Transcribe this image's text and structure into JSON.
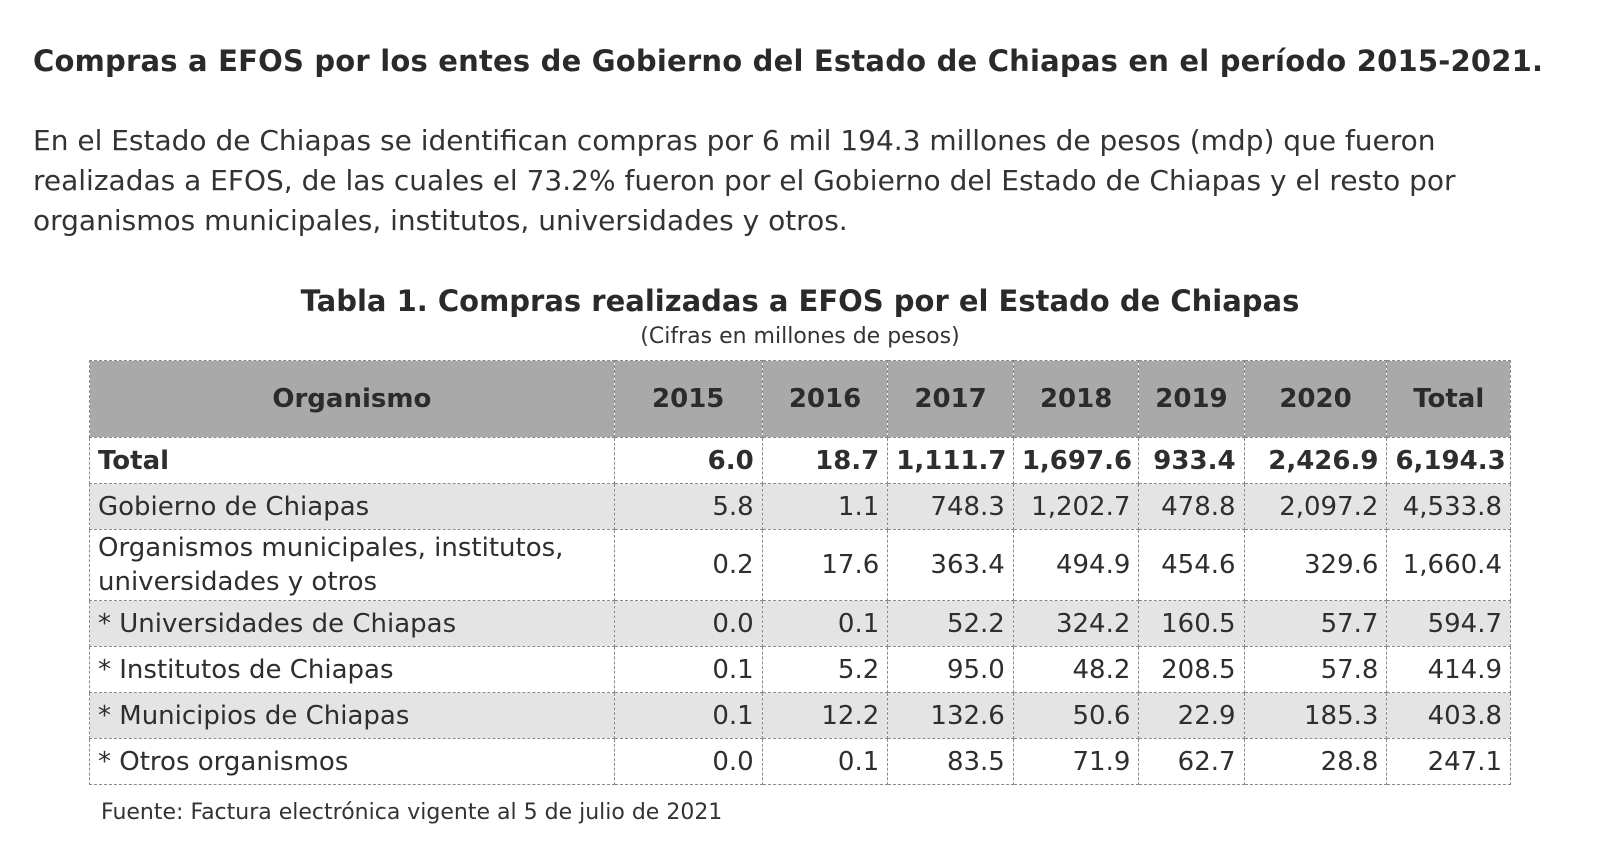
{
  "heading": "Compras a EFOS por los entes de Gobierno del Estado de Chiapas en el período 2015-2021.",
  "intro": "En el Estado de Chiapas se identifican compras por 6 mil 194.3 millones de pesos (mdp) que fueron realizadas a EFOS, de las cuales el 73.2% fueron por el Gobierno del Estado de Chiapas y el resto por organismos municipales, institutos, universidades y otros.",
  "table": {
    "title": "Tabla 1. Compras realizadas a EFOS por el Estado de Chiapas",
    "subtitle": "(Cifras en millones de pesos)",
    "headers": [
      "Organismo",
      "2015",
      "2016",
      "2017",
      "2018",
      "2019",
      "2020",
      "Total"
    ],
    "rows": [
      {
        "name": "Total",
        "values": [
          "6.0",
          "18.7",
          "1,111.7",
          "1,697.6",
          "933.4",
          "2,426.9",
          "6,194.3"
        ]
      },
      {
        "name": "Gobierno de Chiapas",
        "values": [
          "5.8",
          "1.1",
          "748.3",
          "1,202.7",
          "478.8",
          "2,097.2",
          "4,533.8"
        ]
      },
      {
        "name": "Organismos municipales, institutos, universidades y otros",
        "values": [
          "0.2",
          "17.6",
          "363.4",
          "494.9",
          "454.6",
          "329.6",
          "1,660.4"
        ]
      },
      {
        "name": "* Universidades de Chiapas",
        "values": [
          "0.0",
          "0.1",
          "52.2",
          "324.2",
          "160.5",
          "57.7",
          "594.7"
        ]
      },
      {
        "name": "* Institutos de Chiapas",
        "values": [
          "0.1",
          "5.2",
          "95.0",
          "48.2",
          "208.5",
          "57.8",
          "414.9"
        ]
      },
      {
        "name": "* Municipios de Chiapas",
        "values": [
          "0.1",
          "12.2",
          "132.6",
          "50.6",
          "22.9",
          "185.3",
          "403.8"
        ]
      },
      {
        "name": "* Otros organismos",
        "values": [
          "0.0",
          "0.1",
          "83.5",
          "71.9",
          "62.7",
          "28.8",
          "247.1"
        ]
      }
    ],
    "source": "Fuente: Factura electrónica vigente al 5 de julio de 2021"
  }
}
